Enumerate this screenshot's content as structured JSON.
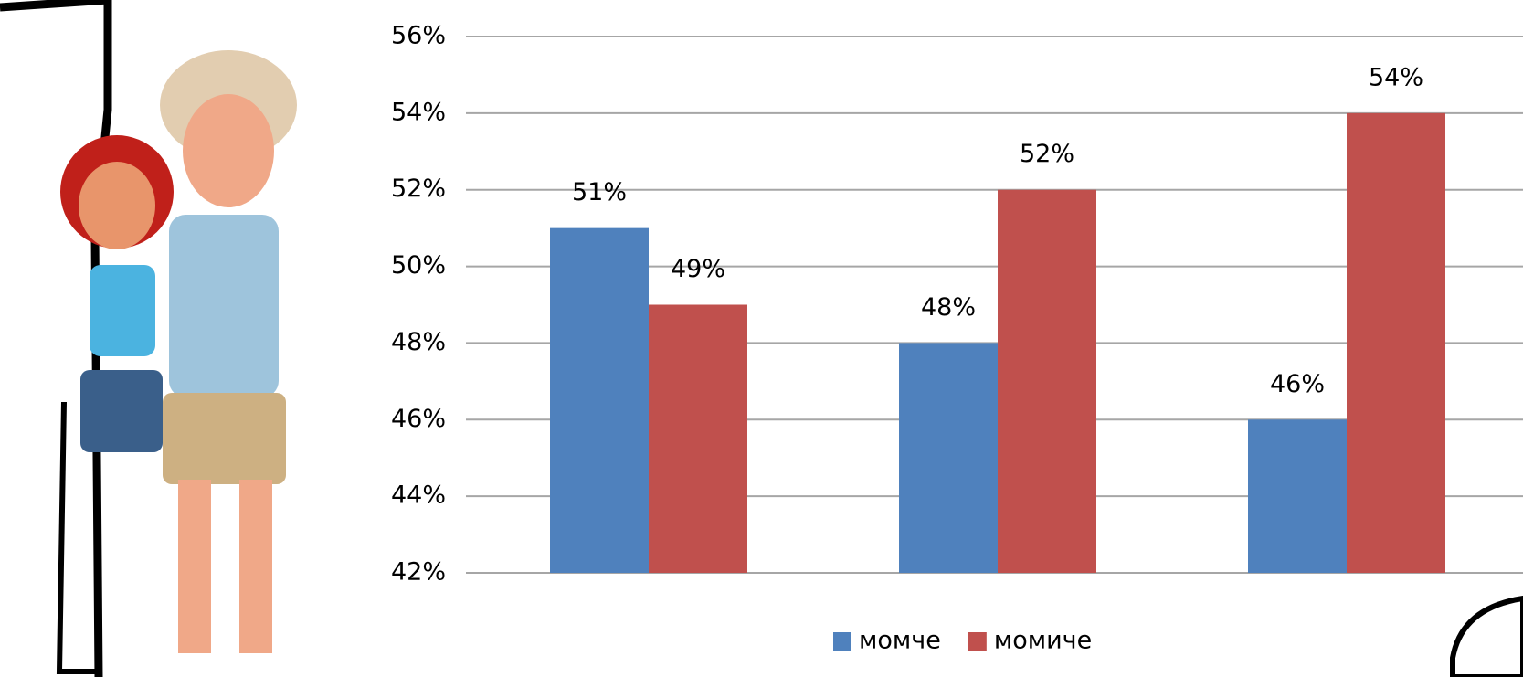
{
  "chart_data": {
    "type": "bar",
    "categories": [
      null,
      null,
      null
    ],
    "series": [
      {
        "name": "момче",
        "color": "#4f81bd",
        "values": [
          51,
          48,
          46
        ],
        "value_labels": [
          "51%",
          "48%",
          "46%"
        ]
      },
      {
        "name": "момиче",
        "color": "#c0504d",
        "values": [
          49,
          52,
          54
        ],
        "value_labels": [
          "49%",
          "52%",
          "54%"
        ]
      }
    ],
    "ylim": [
      42,
      56
    ],
    "yticks": [
      {
        "value": 42,
        "label": "42%"
      },
      {
        "value": 44,
        "label": "44%"
      },
      {
        "value": 46,
        "label": "46%"
      },
      {
        "value": 48,
        "label": "48%"
      },
      {
        "value": 50,
        "label": "50%"
      },
      {
        "value": 52,
        "label": "52%"
      },
      {
        "value": 54,
        "label": "54%"
      },
      {
        "value": 56,
        "label": "56%"
      }
    ],
    "grid": true,
    "legend": "bottom"
  }
}
